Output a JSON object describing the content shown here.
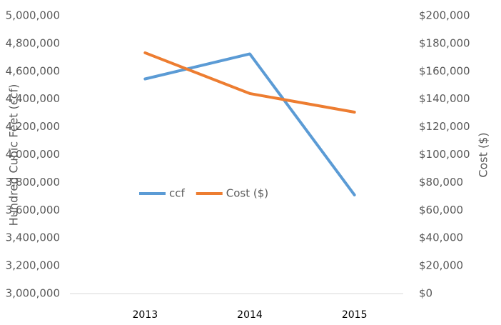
{
  "chart_data": {
    "type": "line",
    "ylabel": "Hundred Cubic Feet (ccf)",
    "y2label": "Cost ($)",
    "categories": [
      "2013",
      "2014",
      "2015"
    ],
    "series": [
      {
        "name": "ccf",
        "color": "#5b9bd5",
        "values": [
          4545000,
          4725000,
          3710000
        ]
      },
      {
        "name": "Cost ($)",
        "color": "#ed7d31",
        "axis": "y2",
        "values": [
          173300,
          144000,
          130600
        ]
      }
    ],
    "ylim": [
      3000000,
      5000000
    ],
    "yticks": [
      {
        "value": 3000000,
        "label": "3,000,000"
      },
      {
        "value": 3200000,
        "label": "3,200,000"
      },
      {
        "value": 3400000,
        "label": "3,400,000"
      },
      {
        "value": 3600000,
        "label": "3,600,000"
      },
      {
        "value": 3800000,
        "label": "3,800,000"
      },
      {
        "value": 4000000,
        "label": "4,000,000"
      },
      {
        "value": 4200000,
        "label": "4,200,000"
      },
      {
        "value": 4400000,
        "label": "4,400,000"
      },
      {
        "value": 4600000,
        "label": "4,600,000"
      },
      {
        "value": 4800000,
        "label": "4,800,000"
      },
      {
        "value": 5000000,
        "label": "5,000,000"
      }
    ],
    "y2lim": [
      0,
      200000
    ],
    "y2ticks": [
      {
        "value": 0,
        "label": "$0"
      },
      {
        "value": 20000,
        "label": "$20,000"
      },
      {
        "value": 40000,
        "label": "$40,000"
      },
      {
        "value": 60000,
        "label": "$60,000"
      },
      {
        "value": 80000,
        "label": "$80,000"
      },
      {
        "value": 100000,
        "label": "$100,000"
      },
      {
        "value": 120000,
        "label": "$120,000"
      },
      {
        "value": 140000,
        "label": "$140,000"
      },
      {
        "value": 160000,
        "label": "$160,000"
      },
      {
        "value": 180000,
        "label": "$180,000"
      },
      {
        "value": 200000,
        "label": "$200,000"
      }
    ],
    "grid": false,
    "legend": "center"
  }
}
